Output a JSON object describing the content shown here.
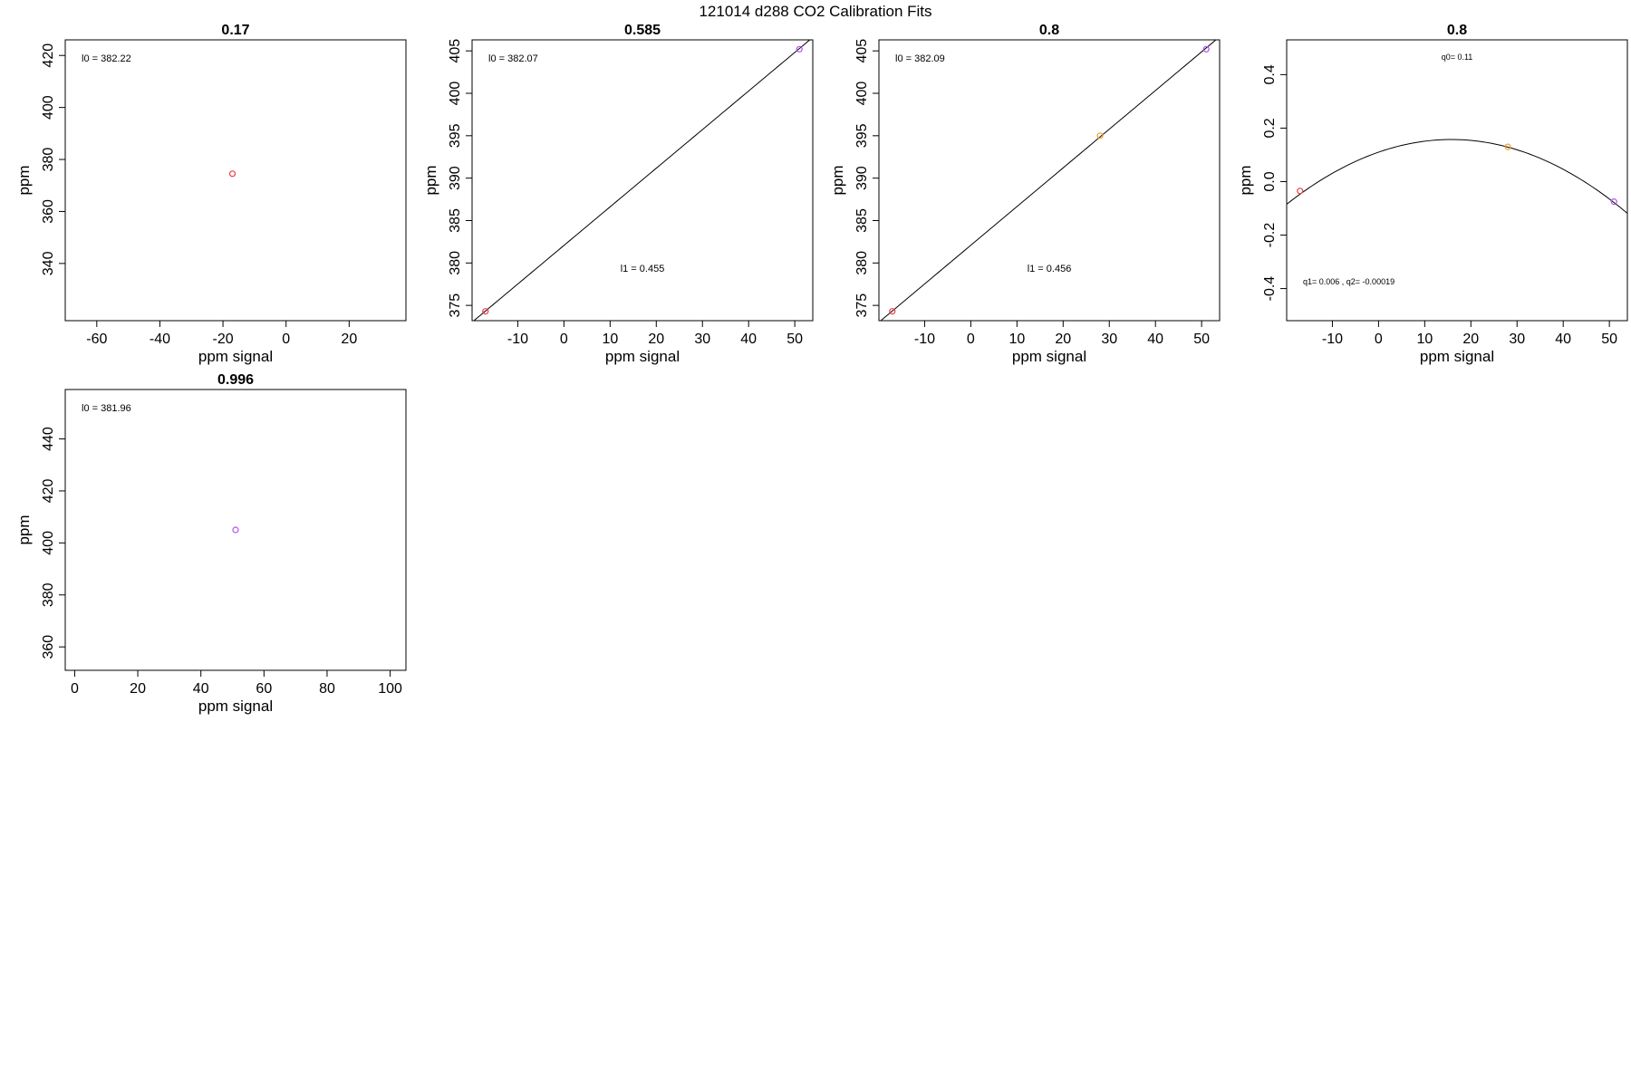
{
  "page_title": "121014   d288   CO2 Calibration Fits",
  "colors": {
    "red": "#e8404a",
    "orange": "#f0a030",
    "purple": "#b050ee",
    "axis": "#000000",
    "fit_line": "#000000"
  },
  "chart_data": [
    {
      "type": "scatter",
      "title": "0.17",
      "xlabel": "ppm signal",
      "ylabel": "ppm",
      "xlim": [
        -70,
        38
      ],
      "ylim": [
        318,
        426
      ],
      "xticks": [
        -60,
        -40,
        -20,
        0,
        20
      ],
      "yticks": [
        340,
        360,
        380,
        400,
        420
      ],
      "points": [
        {
          "x": -17,
          "y": 374.5,
          "color": "red"
        }
      ],
      "fit": null,
      "annotations": [
        {
          "text": "l0 =  382.22",
          "pos": "top-left"
        }
      ]
    },
    {
      "type": "scatter",
      "title": "0.585",
      "xlabel": "ppm signal",
      "ylabel": "ppm",
      "xlim": [
        -19.9,
        53.9
      ],
      "ylim": [
        373.2,
        406.3
      ],
      "xticks": [
        -10,
        0,
        10,
        20,
        30,
        40,
        50
      ],
      "yticks": [
        375,
        380,
        385,
        390,
        395,
        400,
        405
      ],
      "points": [
        {
          "x": -17,
          "y": 374.3,
          "color": "red"
        },
        {
          "x": 51,
          "y": 405.2,
          "color": "purple"
        }
      ],
      "fit": {
        "kind": "linear",
        "a": 382.07,
        "b": 0.455
      },
      "annotations": [
        {
          "text": "l0 =  382.07",
          "pos": "top-left"
        },
        {
          "text": "l1 =  0.455",
          "pos": "center-bottom"
        }
      ]
    },
    {
      "type": "scatter",
      "title": "0.8",
      "xlabel": "ppm signal",
      "ylabel": "ppm",
      "xlim": [
        -19.9,
        53.9
      ],
      "ylim": [
        373.2,
        406.3
      ],
      "xticks": [
        -10,
        0,
        10,
        20,
        30,
        40,
        50
      ],
      "yticks": [
        375,
        380,
        385,
        390,
        395,
        400,
        405
      ],
      "points": [
        {
          "x": -17,
          "y": 374.3,
          "color": "red"
        },
        {
          "x": 28,
          "y": 395.0,
          "color": "orange"
        },
        {
          "x": 51,
          "y": 405.2,
          "color": "purple"
        }
      ],
      "fit": {
        "kind": "linear",
        "a": 382.09,
        "b": 0.456
      },
      "annotations": [
        {
          "text": "l0 =  382.09",
          "pos": "top-left"
        },
        {
          "text": "l1 =  0.456",
          "pos": "center-bottom"
        }
      ]
    },
    {
      "type": "scatter",
      "title": "0.8",
      "xlabel": "ppm signal",
      "ylabel": "ppm",
      "xlim": [
        -19.9,
        53.9
      ],
      "ylim": [
        -0.52,
        0.53
      ],
      "xticks": [
        -10,
        0,
        10,
        20,
        30,
        40,
        50
      ],
      "yticks": [
        -0.4,
        -0.2,
        0.0,
        0.2,
        0.4
      ],
      "ytick_labels": [
        "-0.4",
        "-0.2",
        "0.0",
        "0.2",
        "0.4"
      ],
      "points": [
        {
          "x": -17,
          "y": -0.035,
          "color": "red"
        },
        {
          "x": 28,
          "y": 0.13,
          "color": "orange"
        },
        {
          "x": 51,
          "y": -0.075,
          "color": "purple"
        }
      ],
      "fit": {
        "kind": "quadratic",
        "q0": 0.11,
        "q1": 0.006,
        "q2": -0.00019
      },
      "annotations": [
        {
          "text": "q0= 0.11",
          "pos": "top-center"
        },
        {
          "text": "q1= 0.006 , q2= -0.00019",
          "pos": "bottom-left"
        }
      ]
    },
    {
      "type": "scatter",
      "title": "0.996",
      "xlabel": "ppm signal",
      "ylabel": "ppm",
      "xlim": [
        -3,
        105
      ],
      "ylim": [
        351,
        459
      ],
      "xticks": [
        0,
        20,
        40,
        60,
        80,
        100
      ],
      "yticks": [
        360,
        380,
        400,
        420,
        440
      ],
      "points": [
        {
          "x": 51,
          "y": 405,
          "color": "purple"
        }
      ],
      "fit": null,
      "annotations": [
        {
          "text": "l0 =  381.96",
          "pos": "top-left"
        }
      ]
    }
  ]
}
